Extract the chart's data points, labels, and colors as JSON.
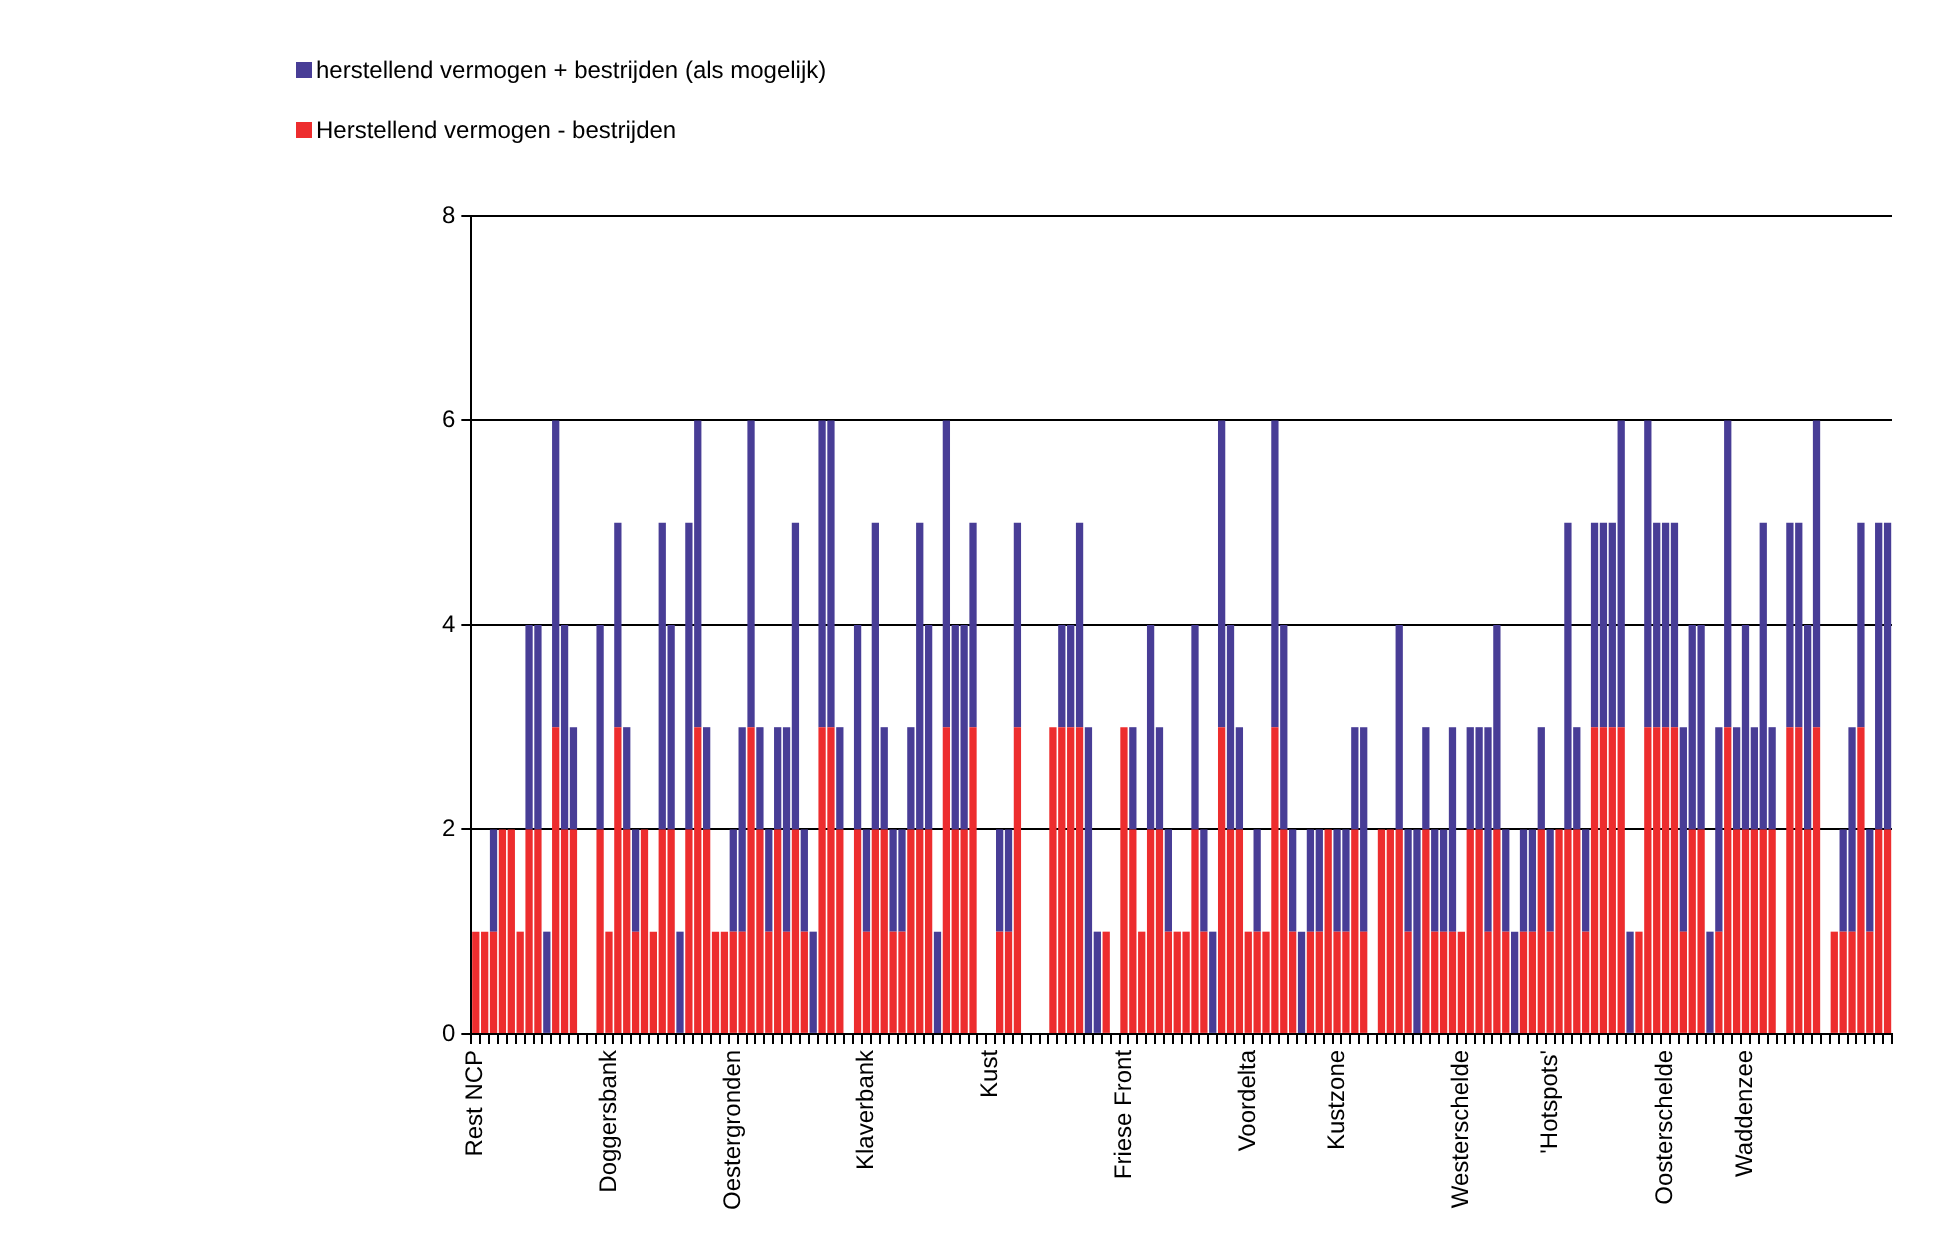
{
  "chart_data": {
    "type": "bar",
    "categories": [
      "Rest NCP",
      null,
      null,
      null,
      null,
      null,
      null,
      null,
      null,
      null,
      null,
      null,
      null,
      null,
      null,
      "Doggersbank",
      null,
      null,
      null,
      null,
      null,
      null,
      null,
      null,
      null,
      null,
      null,
      null,
      null,
      "Oestergronden",
      null,
      null,
      null,
      null,
      null,
      null,
      null,
      null,
      null,
      null,
      null,
      null,
      null,
      null,
      "Klaverbank",
      null,
      null,
      null,
      null,
      null,
      null,
      null,
      null,
      null,
      null,
      null,
      null,
      null,
      "Kust",
      null,
      null,
      null,
      null,
      null,
      null,
      null,
      null,
      null,
      null,
      null,
      null,
      null,
      null,
      "Friese Front",
      null,
      null,
      null,
      null,
      null,
      null,
      null,
      null,
      null,
      null,
      null,
      null,
      null,
      "Voordelta",
      null,
      null,
      null,
      null,
      null,
      null,
      null,
      null,
      null,
      "Kustzone",
      null,
      null,
      null,
      null,
      null,
      null,
      null,
      null,
      null,
      null,
      null,
      null,
      null,
      "Westerschelde",
      null,
      null,
      null,
      null,
      null,
      null,
      null,
      null,
      null,
      "'Hotspots'",
      null,
      null,
      null,
      null,
      null,
      null,
      null,
      null,
      null,
      null,
      null,
      null,
      "Oosterschelde",
      null,
      null,
      null,
      null,
      null,
      null,
      null,
      null,
      "Waddenzee",
      null,
      null,
      null,
      null,
      null,
      null,
      null,
      null,
      null,
      null,
      null,
      null,
      null,
      null,
      null,
      null
    ],
    "series": [
      {
        "name": "Herstellend vermogen - bestrijden",
        "color": "#ed2d2e",
        "values": [
          1,
          1,
          1,
          2,
          2,
          1,
          2,
          2,
          0,
          3,
          2,
          2,
          0,
          0,
          2,
          1,
          3,
          2,
          1,
          2,
          1,
          2,
          2,
          0,
          2,
          3,
          2,
          1,
          1,
          1,
          1,
          3,
          2,
          1,
          2,
          1,
          2,
          1,
          0,
          3,
          3,
          2,
          0,
          2,
          1,
          2,
          2,
          1,
          1,
          2,
          2,
          2,
          0,
          3,
          2,
          2,
          3,
          0,
          0,
          1,
          1,
          3,
          0,
          0,
          0,
          3,
          3,
          3,
          3,
          0,
          0,
          1,
          0,
          3,
          2,
          1,
          2,
          2,
          1,
          1,
          1,
          2,
          1,
          0,
          3,
          2,
          2,
          1,
          1,
          1,
          3,
          2,
          1,
          0,
          1,
          1,
          2,
          1,
          1,
          2,
          1,
          0,
          2,
          2,
          2,
          1,
          0,
          2,
          1,
          1,
          1,
          1,
          2,
          2,
          1,
          2,
          1,
          0,
          1,
          1,
          2,
          1,
          2,
          2,
          2,
          1,
          3,
          3,
          3,
          3,
          0,
          1,
          3,
          3,
          3,
          3,
          1,
          2,
          2,
          0,
          1,
          3,
          2,
          2,
          2,
          2,
          2,
          0,
          3,
          3,
          2,
          3,
          0,
          1,
          1,
          1,
          3,
          1,
          2,
          2
        ]
      },
      {
        "name": "herstellend vermogen + bestrijden (als mogelijk)",
        "color": "#483d96",
        "values": [
          0,
          0,
          1,
          0,
          0,
          0,
          2,
          2,
          1,
          3,
          2,
          1,
          0,
          0,
          2,
          0,
          2,
          1,
          1,
          0,
          0,
          3,
          2,
          1,
          3,
          3,
          1,
          0,
          0,
          1,
          2,
          3,
          1,
          1,
          1,
          2,
          3,
          1,
          1,
          3,
          3,
          1,
          0,
          2,
          1,
          3,
          1,
          1,
          1,
          1,
          3,
          2,
          1,
          3,
          2,
          2,
          2,
          0,
          0,
          1,
          1,
          2,
          0,
          0,
          0,
          0,
          1,
          1,
          2,
          3,
          1,
          0,
          0,
          0,
          1,
          0,
          2,
          1,
          1,
          0,
          0,
          2,
          1,
          1,
          3,
          2,
          1,
          0,
          1,
          0,
          3,
          2,
          1,
          1,
          1,
          1,
          0,
          1,
          1,
          1,
          2,
          0,
          0,
          0,
          2,
          1,
          2,
          1,
          1,
          1,
          2,
          0,
          1,
          1,
          2,
          2,
          1,
          1,
          1,
          1,
          1,
          1,
          0,
          3,
          1,
          1,
          2,
          2,
          2,
          3,
          1,
          0,
          3,
          2,
          2,
          2,
          2,
          2,
          2,
          1,
          2,
          3,
          1,
          2,
          1,
          3,
          1,
          0,
          2,
          2,
          2,
          3,
          0,
          0,
          1,
          2,
          2,
          1,
          3,
          3
        ]
      }
    ],
    "stacked": true,
    "ylim": [
      0,
      8
    ],
    "yticks": [
      0,
      2,
      4,
      6,
      8
    ],
    "grid": "y",
    "legend": "top left"
  }
}
